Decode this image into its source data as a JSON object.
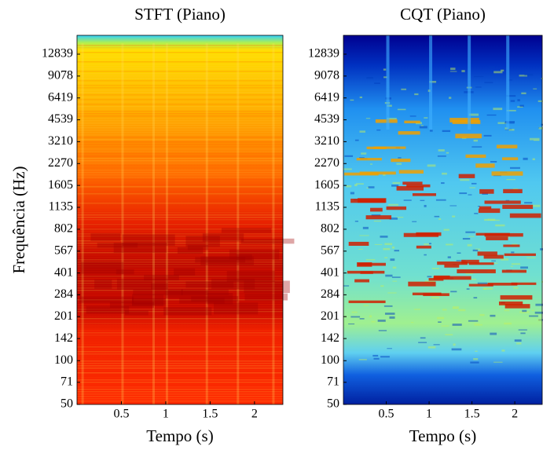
{
  "chart_data": [
    {
      "type": "spectrogram",
      "title": "STFT (Piano)",
      "xlabel": "Tempo (s)",
      "ylabel": "Frequência (Hz)",
      "xlim": [
        0,
        2.32
      ],
      "xticks": [
        0.5,
        1,
        1.5,
        2
      ],
      "ylim": [
        50,
        17300
      ],
      "yscale": "log",
      "yticks": [
        50,
        71,
        100,
        142,
        201,
        284,
        401,
        567,
        802,
        1135,
        1605,
        2270,
        3210,
        4539,
        6419,
        9078,
        12839
      ]
    },
    {
      "type": "spectrogram",
      "title": "CQT (Piano)",
      "xlabel": "Tempo (s)",
      "xlim": [
        0,
        2.32
      ],
      "xticks": [
        0.5,
        1,
        1.5,
        2
      ],
      "ylim": [
        50,
        17300
      ],
      "yscale": "log",
      "yticks": [
        50,
        71,
        100,
        142,
        201,
        284,
        401,
        567,
        802,
        1135,
        1605,
        2270,
        3210,
        4539,
        6419,
        9078,
        12839
      ]
    }
  ]
}
